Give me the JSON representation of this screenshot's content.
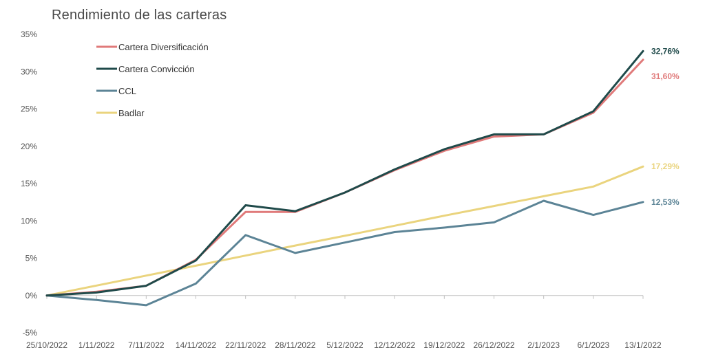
{
  "chart_data": {
    "type": "line",
    "title": "Rendimiento de las carteras",
    "xlabel": "",
    "ylabel": "",
    "ylim": [
      -5,
      35
    ],
    "ytick_values": [
      -5,
      0,
      5,
      10,
      15,
      20,
      25,
      30,
      35
    ],
    "ytick_labels": [
      "-5%",
      "0%",
      "5%",
      "10%",
      "15%",
      "20%",
      "25%",
      "30%",
      "35%"
    ],
    "categories": [
      "25/10/2022",
      "1/11/2022",
      "7/11/2022",
      "14/11/2022",
      "22/11/2022",
      "28/11/2022",
      "5/12/2022",
      "12/12/2022",
      "19/12/2022",
      "26/12/2022",
      "2/1/2023",
      "6/1/2023",
      "13/1/2022"
    ],
    "legend_position": "top-left",
    "series": [
      {
        "name": "Cartera Diversificación",
        "color": "#e07a7a",
        "values": [
          0,
          0.5,
          1.3,
          4.8,
          11.2,
          11.2,
          13.8,
          16.8,
          19.4,
          21.3,
          21.6,
          24.5,
          31.6
        ],
        "end_label": "31,60%"
      },
      {
        "name": "Cartera Convicción",
        "color": "#1f4a4a",
        "values": [
          0,
          0.4,
          1.3,
          4.7,
          12.1,
          11.3,
          13.8,
          16.9,
          19.6,
          21.6,
          21.6,
          24.7,
          32.76
        ],
        "end_label": "32,76%"
      },
      {
        "name": "CCL",
        "color": "#5c8496",
        "values": [
          0,
          -0.6,
          -1.3,
          1.6,
          8.1,
          5.7,
          7.1,
          8.5,
          9.1,
          9.8,
          12.7,
          10.8,
          12.53
        ],
        "end_label": "12,53%"
      },
      {
        "name": "Badlar",
        "color": "#ead47e",
        "values": [
          0,
          1.33,
          2.67,
          4.0,
          5.35,
          6.7,
          8.0,
          9.35,
          10.7,
          12.0,
          13.3,
          14.6,
          17.29
        ],
        "end_label": "17,29%"
      }
    ]
  }
}
